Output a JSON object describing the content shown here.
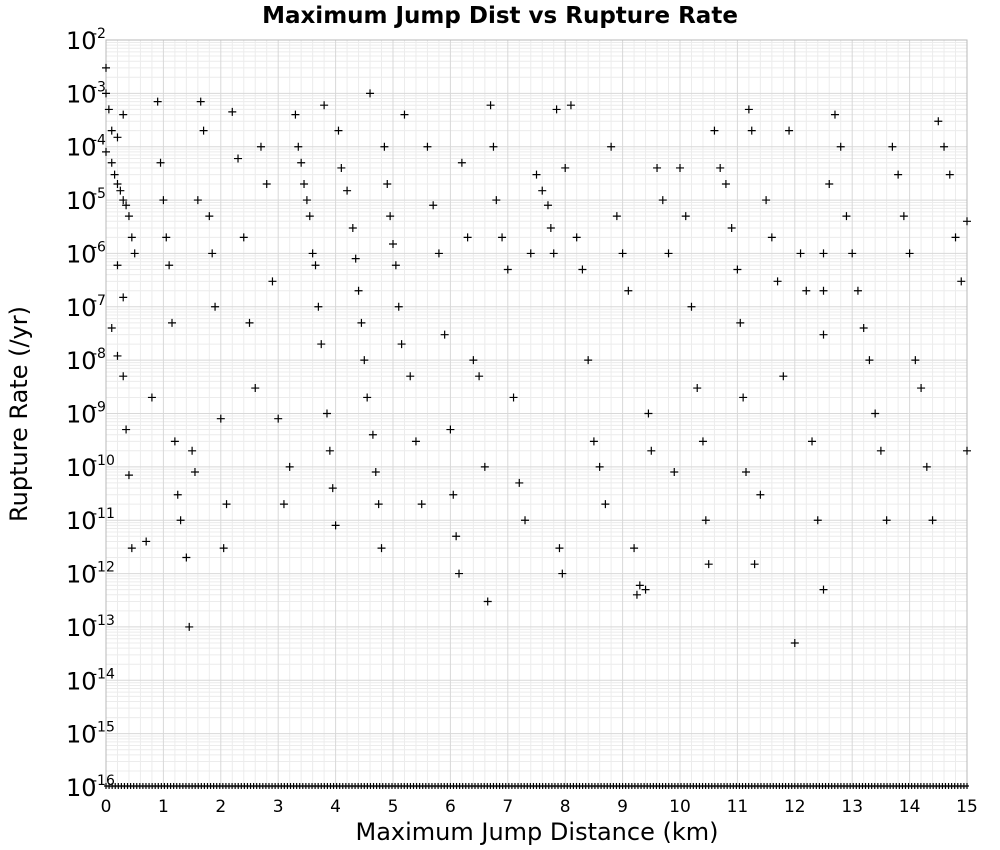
{
  "chart_data": {
    "type": "scatter",
    "title": "Maximum Jump Dist vs Rupture Rate",
    "xlabel": "Maximum Jump Distance (km)",
    "ylabel": "Rupture Rate (/yr)",
    "xlim": [
      0,
      15
    ],
    "ylim_log10": [
      -16,
      -2
    ],
    "yscale": "log",
    "grid": true,
    "marker": "+",
    "x_ticks": [
      "0",
      "1",
      "2",
      "3",
      "4",
      "5",
      "6",
      "7",
      "8",
      "9",
      "10",
      "11",
      "12",
      "13",
      "14",
      "15"
    ],
    "y_ticks": [
      {
        "base": "10",
        "exp": "-2"
      },
      {
        "base": "10",
        "exp": "-3"
      },
      {
        "base": "10",
        "exp": "-4"
      },
      {
        "base": "10",
        "exp": "-5"
      },
      {
        "base": "10",
        "exp": "-6"
      },
      {
        "base": "10",
        "exp": "-7"
      },
      {
        "base": "10",
        "exp": "-8"
      },
      {
        "base": "10",
        "exp": "-9"
      },
      {
        "base": "10",
        "exp": "-10"
      },
      {
        "base": "10",
        "exp": "-11"
      },
      {
        "base": "10",
        "exp": "-12"
      },
      {
        "base": "10",
        "exp": "-13"
      },
      {
        "base": "10",
        "exp": "-14"
      },
      {
        "base": "10",
        "exp": "-15"
      },
      {
        "base": "10",
        "exp": "-16"
      }
    ],
    "points": [
      [
        0.0,
        0.003
      ],
      [
        0.0,
        0.001
      ],
      [
        0.05,
        0.0005
      ],
      [
        0.1,
        0.0002
      ],
      [
        0.2,
        0.00015
      ],
      [
        0.3,
        0.0004
      ],
      [
        0.0,
        8e-05
      ],
      [
        0.1,
        5e-05
      ],
      [
        0.15,
        3e-05
      ],
      [
        0.2,
        2e-05
      ],
      [
        0.25,
        1.5e-05
      ],
      [
        0.3,
        1e-05
      ],
      [
        0.35,
        8e-06
      ],
      [
        0.4,
        5e-06
      ],
      [
        0.45,
        2e-06
      ],
      [
        0.5,
        1e-06
      ],
      [
        0.2,
        6e-07
      ],
      [
        0.3,
        1.5e-07
      ],
      [
        0.1,
        4e-08
      ],
      [
        0.2,
        1.2e-08
      ],
      [
        0.3,
        5e-09
      ],
      [
        0.35,
        5e-10
      ],
      [
        0.4,
        7e-11
      ],
      [
        0.45,
        3e-12
      ],
      [
        0.7,
        4e-12
      ],
      [
        0.8,
        2e-09
      ],
      [
        0.9,
        0.0007
      ],
      [
        0.95,
        5e-05
      ],
      [
        1.0,
        1e-05
      ],
      [
        1.05,
        2e-06
      ],
      [
        1.1,
        6e-07
      ],
      [
        1.15,
        5e-08
      ],
      [
        1.2,
        3e-10
      ],
      [
        1.25,
        3e-11
      ],
      [
        1.3,
        1e-11
      ],
      [
        1.4,
        2e-12
      ],
      [
        1.45,
        1e-13
      ],
      [
        1.5,
        2e-10
      ],
      [
        1.55,
        8e-11
      ],
      [
        1.6,
        1e-05
      ],
      [
        1.65,
        0.0007
      ],
      [
        1.7,
        0.0002
      ],
      [
        1.8,
        5e-06
      ],
      [
        1.85,
        1e-06
      ],
      [
        1.9,
        1e-07
      ],
      [
        2.0,
        8e-10
      ],
      [
        2.05,
        3e-12
      ],
      [
        2.1,
        2e-11
      ],
      [
        2.2,
        0.00045
      ],
      [
        2.3,
        6e-05
      ],
      [
        2.4,
        2e-06
      ],
      [
        2.5,
        5e-08
      ],
      [
        2.6,
        3e-09
      ],
      [
        2.7,
        0.0001
      ],
      [
        2.8,
        2e-05
      ],
      [
        2.9,
        3e-07
      ],
      [
        3.0,
        8e-10
      ],
      [
        3.1,
        2e-11
      ],
      [
        3.2,
        1e-10
      ],
      [
        3.3,
        0.0004
      ],
      [
        3.35,
        0.0001
      ],
      [
        3.4,
        5e-05
      ],
      [
        3.45,
        2e-05
      ],
      [
        3.5,
        1e-05
      ],
      [
        3.55,
        5e-06
      ],
      [
        3.6,
        1e-06
      ],
      [
        3.65,
        6e-07
      ],
      [
        3.7,
        1e-07
      ],
      [
        3.75,
        2e-08
      ],
      [
        3.8,
        0.0006
      ],
      [
        3.85,
        1e-09
      ],
      [
        3.9,
        2e-10
      ],
      [
        3.95,
        4e-11
      ],
      [
        4.0,
        8e-12
      ],
      [
        4.05,
        0.0002
      ],
      [
        4.1,
        4e-05
      ],
      [
        4.2,
        1.5e-05
      ],
      [
        4.3,
        3e-06
      ],
      [
        4.35,
        8e-07
      ],
      [
        4.4,
        2e-07
      ],
      [
        4.45,
        5e-08
      ],
      [
        4.5,
        1e-08
      ],
      [
        4.55,
        2e-09
      ],
      [
        4.6,
        0.001
      ],
      [
        4.65,
        4e-10
      ],
      [
        4.7,
        8e-11
      ],
      [
        4.75,
        2e-11
      ],
      [
        4.8,
        3e-12
      ],
      [
        4.85,
        0.0001
      ],
      [
        4.9,
        2e-05
      ],
      [
        4.95,
        5e-06
      ],
      [
        5.0,
        1.5e-06
      ],
      [
        5.05,
        6e-07
      ],
      [
        5.1,
        1e-07
      ],
      [
        5.15,
        2e-08
      ],
      [
        5.2,
        0.0004
      ],
      [
        5.3,
        5e-09
      ],
      [
        5.4,
        3e-10
      ],
      [
        5.5,
        2e-11
      ],
      [
        5.6,
        0.0001
      ],
      [
        5.7,
        8e-06
      ],
      [
        5.8,
        1e-06
      ],
      [
        5.9,
        3e-08
      ],
      [
        6.0,
        5e-10
      ],
      [
        6.05,
        3e-11
      ],
      [
        6.1,
        5e-12
      ],
      [
        6.15,
        1e-12
      ],
      [
        6.2,
        5e-05
      ],
      [
        6.3,
        2e-06
      ],
      [
        6.4,
        1e-08
      ],
      [
        6.5,
        5e-09
      ],
      [
        6.6,
        1e-10
      ],
      [
        6.65,
        3e-13
      ],
      [
        6.7,
        0.0006
      ],
      [
        6.75,
        0.0001
      ],
      [
        6.8,
        1e-05
      ],
      [
        6.9,
        2e-06
      ],
      [
        7.0,
        5e-07
      ],
      [
        7.1,
        2e-09
      ],
      [
        7.2,
        5e-11
      ],
      [
        7.3,
        1e-11
      ],
      [
        7.4,
        1e-06
      ],
      [
        7.5,
        3e-05
      ],
      [
        7.6,
        1.5e-05
      ],
      [
        7.7,
        8e-06
      ],
      [
        7.75,
        3e-06
      ],
      [
        7.8,
        1e-06
      ],
      [
        7.85,
        0.0005
      ],
      [
        7.9,
        3e-12
      ],
      [
        7.95,
        1e-12
      ],
      [
        8.0,
        4e-05
      ],
      [
        8.1,
        0.0006
      ],
      [
        8.2,
        2e-06
      ],
      [
        8.3,
        5e-07
      ],
      [
        8.4,
        1e-08
      ],
      [
        8.5,
        3e-10
      ],
      [
        8.6,
        1e-10
      ],
      [
        8.7,
        2e-11
      ],
      [
        8.8,
        0.0001
      ],
      [
        8.9,
        5e-06
      ],
      [
        9.0,
        1e-06
      ],
      [
        9.1,
        2e-07
      ],
      [
        9.2,
        3e-12
      ],
      [
        9.25,
        4e-13
      ],
      [
        9.3,
        6e-13
      ],
      [
        9.4,
        5e-13
      ],
      [
        9.45,
        1e-09
      ],
      [
        9.5,
        2e-10
      ],
      [
        9.6,
        4e-05
      ],
      [
        9.7,
        1e-05
      ],
      [
        9.8,
        1e-06
      ],
      [
        9.9,
        8e-11
      ],
      [
        10.0,
        4e-05
      ],
      [
        10.1,
        5e-06
      ],
      [
        10.2,
        1e-07
      ],
      [
        10.3,
        3e-09
      ],
      [
        10.4,
        3e-10
      ],
      [
        10.45,
        1e-11
      ],
      [
        10.5,
        1.5e-12
      ],
      [
        10.6,
        0.0002
      ],
      [
        10.7,
        4e-05
      ],
      [
        10.8,
        2e-05
      ],
      [
        10.9,
        3e-06
      ],
      [
        11.0,
        5e-07
      ],
      [
        11.05,
        5e-08
      ],
      [
        11.1,
        2e-09
      ],
      [
        11.15,
        8e-11
      ],
      [
        11.2,
        0.0005
      ],
      [
        11.25,
        0.0002
      ],
      [
        11.3,
        1.5e-12
      ],
      [
        11.4,
        3e-11
      ],
      [
        11.5,
        1e-05
      ],
      [
        11.6,
        2e-06
      ],
      [
        11.7,
        3e-07
      ],
      [
        11.8,
        5e-09
      ],
      [
        11.9,
        0.0002
      ],
      [
        12.0,
        5e-14
      ],
      [
        12.1,
        1e-06
      ],
      [
        12.2,
        2e-07
      ],
      [
        12.3,
        3e-10
      ],
      [
        12.4,
        1e-11
      ],
      [
        12.5,
        5e-13
      ],
      [
        12.5,
        1e-06
      ],
      [
        12.5,
        2e-07
      ],
      [
        12.5,
        3e-08
      ],
      [
        12.6,
        2e-05
      ],
      [
        12.7,
        0.0004
      ],
      [
        12.8,
        0.0001
      ],
      [
        12.9,
        5e-06
      ],
      [
        13.0,
        1e-06
      ],
      [
        13.1,
        2e-07
      ],
      [
        13.2,
        4e-08
      ],
      [
        13.3,
        1e-08
      ],
      [
        13.4,
        1e-09
      ],
      [
        13.5,
        2e-10
      ],
      [
        13.6,
        1e-11
      ],
      [
        13.7,
        0.0001
      ],
      [
        13.8,
        3e-05
      ],
      [
        13.9,
        5e-06
      ],
      [
        14.0,
        1e-06
      ],
      [
        14.1,
        1e-08
      ],
      [
        14.2,
        3e-09
      ],
      [
        14.3,
        1e-10
      ],
      [
        14.4,
        1e-11
      ],
      [
        14.5,
        0.0003
      ],
      [
        14.6,
        0.0001
      ],
      [
        14.7,
        3e-05
      ],
      [
        14.8,
        2e-06
      ],
      [
        14.9,
        3e-07
      ],
      [
        15.0,
        2e-10
      ],
      [
        15.0,
        4e-06
      ]
    ]
  }
}
